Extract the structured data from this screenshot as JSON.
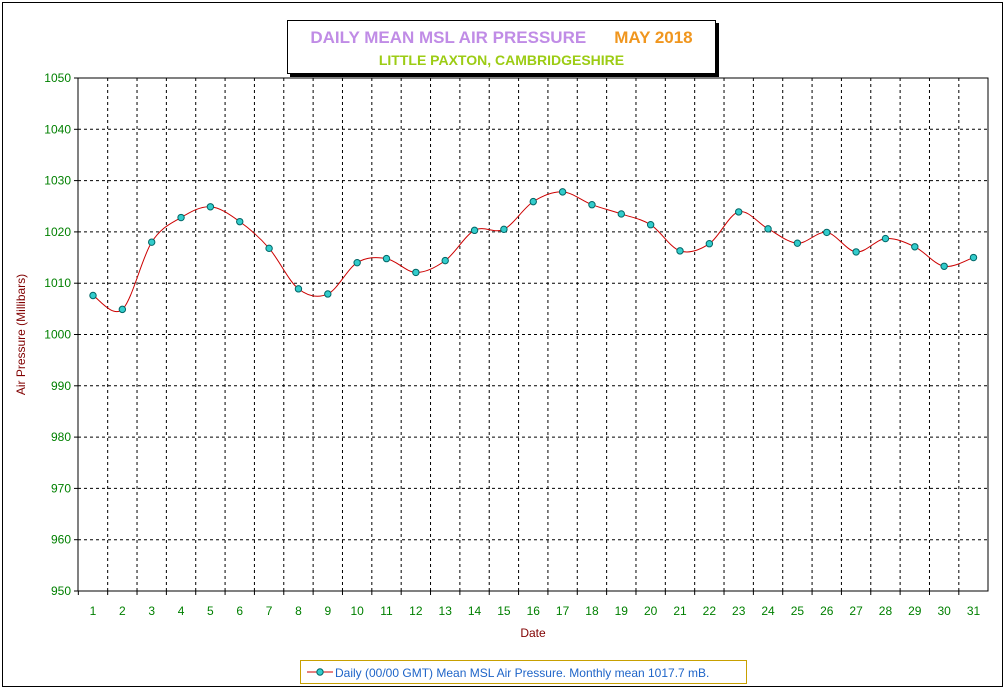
{
  "chart_data": {
    "type": "line",
    "title": "DAILY MEAN MSL AIR PRESSURE",
    "title_month": "MAY 2018",
    "subtitle": "LITTLE PAXTON, CAMBRIDGESHIRE",
    "xlabel": "Date",
    "ylabel": "Air Pressure (Millibars)",
    "ylim": [
      950,
      1050
    ],
    "yticks": [
      "950",
      "960",
      "970",
      "980",
      "990",
      "1000",
      "1010",
      "1020",
      "1030",
      "1040",
      "1050"
    ],
    "x": [
      "1",
      "2",
      "3",
      "4",
      "5",
      "6",
      "7",
      "8",
      "9",
      "10",
      "11",
      "12",
      "13",
      "14",
      "15",
      "16",
      "17",
      "18",
      "19",
      "20",
      "21",
      "22",
      "23",
      "24",
      "25",
      "26",
      "27",
      "28",
      "29",
      "30",
      "31"
    ],
    "series": [
      {
        "name": "Daily (00/00 GMT) Mean MSL Air Pressure. Monthly mean 1017.7 mB.",
        "values": [
          1007.6,
          1004.9,
          1018.0,
          1022.8,
          1024.9,
          1022.0,
          1016.8,
          1008.9,
          1007.9,
          1014.0,
          1014.8,
          1012.1,
          1014.4,
          1020.3,
          1020.5,
          1025.9,
          1027.8,
          1025.3,
          1023.5,
          1021.4,
          1016.3,
          1017.7,
          1023.9,
          1020.6,
          1017.8,
          1019.9,
          1016.1,
          1018.7,
          1017.1,
          1013.3,
          1015.0
        ]
      }
    ],
    "grid": true,
    "legend_position": "bottom",
    "colors": {
      "line": "#cc0000",
      "marker_fill": "#33cccc",
      "marker_edge": "#006666",
      "grid": "#000000"
    }
  }
}
